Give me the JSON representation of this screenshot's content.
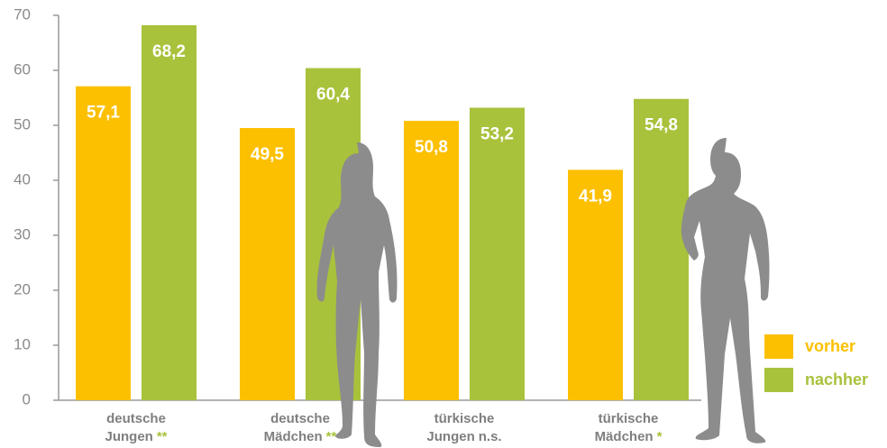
{
  "chart_data": {
    "type": "bar",
    "categories": [
      [
        "deutsche",
        "Jungen"
      ],
      [
        "deutsche",
        "Mädchen"
      ],
      [
        "türkische",
        "Jungen"
      ],
      [
        "türkische",
        "Mädchen"
      ]
    ],
    "markers": [
      {
        "text": "**",
        "color": "#a8c23c"
      },
      {
        "text": "**",
        "color": "#a8c23c"
      },
      {
        "text": "n.s.",
        "color": "#7f7f7f"
      },
      {
        "text": "*",
        "color": "#a8c23c"
      }
    ],
    "series": [
      {
        "name": "vorher",
        "color": "#fcc000",
        "values": [
          57.1,
          49.5,
          50.8,
          41.9
        ],
        "value_labels": [
          "57,1",
          "49,5",
          "50,8",
          "41,9"
        ]
      },
      {
        "name": "nachher",
        "color": "#a8c23c",
        "values": [
          68.2,
          60.4,
          53.2,
          54.8
        ],
        "value_labels": [
          "68,2",
          "60,4",
          "53,2",
          "54,8"
        ]
      }
    ],
    "ylim": [
      0,
      70
    ],
    "yticks": [
      0,
      10,
      20,
      30,
      40,
      50,
      60,
      70
    ],
    "legend": "bottom-right"
  }
}
